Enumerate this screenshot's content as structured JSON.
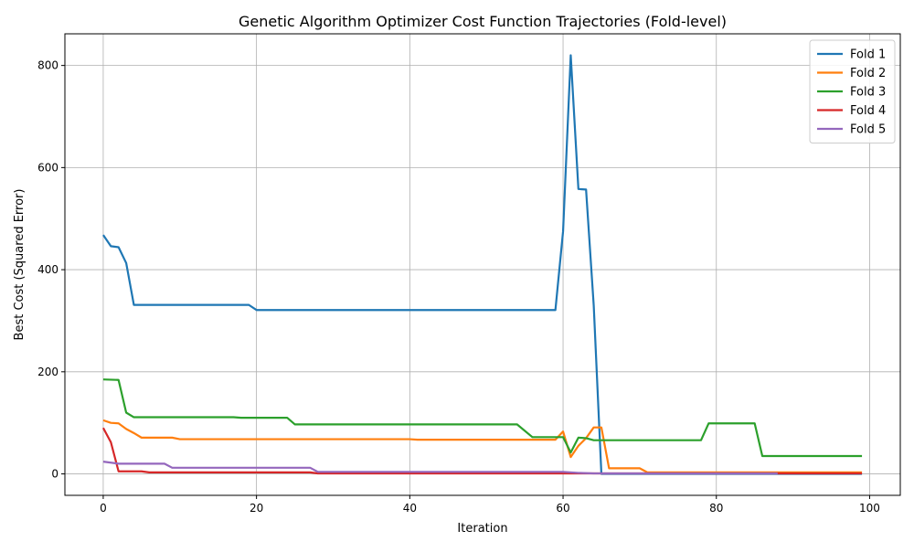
{
  "chart_data": {
    "type": "line",
    "title": "Genetic Algorithm Optimizer Cost Function Trajectories (Fold-level)",
    "xlabel": "Iteration",
    "ylabel": "Best Cost (Squared Error)",
    "xlim": [
      -5,
      104
    ],
    "ylim": [
      -42,
      862
    ],
    "xticks": [
      0,
      20,
      40,
      60,
      80,
      100
    ],
    "yticks": [
      0,
      200,
      400,
      600,
      800
    ],
    "grid": true,
    "legend_position": "top-right",
    "series": [
      {
        "name": "Fold 1",
        "color": "#1f77b4",
        "points": [
          [
            0,
            468
          ],
          [
            1,
            446
          ],
          [
            2,
            444
          ],
          [
            3,
            413
          ],
          [
            4,
            331
          ],
          [
            19,
            331
          ],
          [
            20,
            321
          ],
          [
            59,
            321
          ],
          [
            60,
            475
          ],
          [
            61,
            820
          ],
          [
            62,
            558
          ],
          [
            63,
            557
          ],
          [
            64,
            330
          ],
          [
            65,
            0
          ],
          [
            99,
            0
          ]
        ]
      },
      {
        "name": "Fold 2",
        "color": "#ff7f0e",
        "points": [
          [
            0,
            105
          ],
          [
            1,
            100
          ],
          [
            2,
            99
          ],
          [
            3,
            88
          ],
          [
            4,
            80
          ],
          [
            5,
            71
          ],
          [
            9,
            71
          ],
          [
            10,
            68
          ],
          [
            40,
            68
          ],
          [
            41,
            67
          ],
          [
            59,
            67
          ],
          [
            60,
            83
          ],
          [
            61,
            33
          ],
          [
            62,
            55
          ],
          [
            63,
            70
          ],
          [
            64,
            91
          ],
          [
            65,
            91
          ],
          [
            66,
            11
          ],
          [
            70,
            11
          ],
          [
            71,
            3
          ],
          [
            99,
            3
          ]
        ]
      },
      {
        "name": "Fold 3",
        "color": "#2ca02c",
        "points": [
          [
            0,
            185
          ],
          [
            2,
            184
          ],
          [
            3,
            120
          ],
          [
            4,
            111
          ],
          [
            17,
            111
          ],
          [
            18,
            110
          ],
          [
            24,
            110
          ],
          [
            25,
            97
          ],
          [
            54,
            97
          ],
          [
            56,
            72
          ],
          [
            60,
            72
          ],
          [
            61,
            42
          ],
          [
            62,
            71
          ],
          [
            63,
            70
          ],
          [
            64,
            66
          ],
          [
            78,
            66
          ],
          [
            79,
            99
          ],
          [
            85,
            99
          ],
          [
            86,
            35
          ],
          [
            99,
            35
          ]
        ]
      },
      {
        "name": "Fold 4",
        "color": "#d62728",
        "points": [
          [
            0,
            90
          ],
          [
            1,
            62
          ],
          [
            2,
            5
          ],
          [
            5,
            5
          ],
          [
            6,
            3
          ],
          [
            27,
            3
          ],
          [
            28,
            1
          ],
          [
            99,
            1
          ]
        ]
      },
      {
        "name": "Fold 5",
        "color": "#9467bd",
        "points": [
          [
            0,
            24
          ],
          [
            2,
            20
          ],
          [
            8,
            20
          ],
          [
            9,
            12
          ],
          [
            27,
            12
          ],
          [
            28,
            4
          ],
          [
            60,
            4
          ],
          [
            62,
            2
          ],
          [
            64,
            1
          ],
          [
            88,
            1
          ]
        ]
      }
    ]
  }
}
